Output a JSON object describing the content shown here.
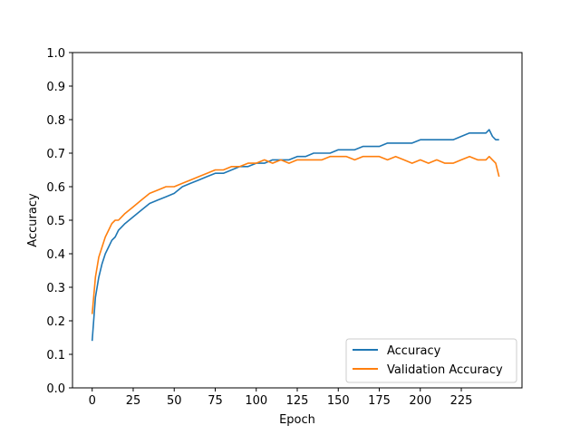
{
  "chart_data": {
    "type": "line",
    "title": "",
    "xlabel": "Epoch",
    "ylabel": "Accuracy",
    "xlim": [
      -12,
      262
    ],
    "ylim": [
      0.0,
      1.0
    ],
    "x_ticks": [
      0,
      25,
      50,
      75,
      100,
      125,
      150,
      175,
      200,
      225
    ],
    "y_ticks": [
      0.0,
      0.1,
      0.2,
      0.3,
      0.4,
      0.5,
      0.6,
      0.7,
      0.8,
      0.9,
      1.0
    ],
    "x_tick_labels": [
      "0",
      "25",
      "50",
      "75",
      "100",
      "125",
      "150",
      "175",
      "200",
      "225"
    ],
    "y_tick_labels": [
      "0.0",
      "0.1",
      "0.2",
      "0.3",
      "0.4",
      "0.5",
      "0.6",
      "0.7",
      "0.8",
      "0.9",
      "1.0"
    ],
    "grid": false,
    "legend_position": "lower-right",
    "series": [
      {
        "name": "Accuracy",
        "color": "#1f77b4",
        "x": [
          0,
          2,
          4,
          6,
          8,
          10,
          12,
          14,
          16,
          18,
          20,
          25,
          30,
          35,
          40,
          45,
          50,
          55,
          60,
          65,
          70,
          75,
          80,
          85,
          90,
          95,
          100,
          105,
          110,
          115,
          120,
          125,
          130,
          135,
          140,
          145,
          150,
          155,
          160,
          165,
          170,
          175,
          180,
          185,
          190,
          195,
          200,
          205,
          210,
          215,
          220,
          225,
          230,
          235,
          240,
          242,
          244,
          246,
          248
        ],
        "y": [
          0.14,
          0.27,
          0.33,
          0.37,
          0.4,
          0.42,
          0.44,
          0.45,
          0.47,
          0.48,
          0.49,
          0.51,
          0.53,
          0.55,
          0.56,
          0.57,
          0.58,
          0.6,
          0.61,
          0.62,
          0.63,
          0.64,
          0.64,
          0.65,
          0.66,
          0.66,
          0.67,
          0.67,
          0.68,
          0.68,
          0.68,
          0.69,
          0.69,
          0.7,
          0.7,
          0.7,
          0.71,
          0.71,
          0.71,
          0.72,
          0.72,
          0.72,
          0.73,
          0.73,
          0.73,
          0.73,
          0.74,
          0.74,
          0.74,
          0.74,
          0.74,
          0.75,
          0.76,
          0.76,
          0.76,
          0.77,
          0.75,
          0.74,
          0.74
        ]
      },
      {
        "name": "Validation Accuracy",
        "color": "#ff7f0e",
        "x": [
          0,
          2,
          4,
          6,
          8,
          10,
          12,
          14,
          16,
          18,
          20,
          25,
          30,
          35,
          40,
          45,
          50,
          55,
          60,
          65,
          70,
          75,
          80,
          85,
          90,
          95,
          100,
          105,
          110,
          115,
          120,
          125,
          130,
          135,
          140,
          145,
          150,
          155,
          160,
          165,
          170,
          175,
          180,
          185,
          190,
          195,
          200,
          205,
          210,
          215,
          220,
          225,
          230,
          235,
          240,
          242,
          244,
          246,
          248
        ],
        "y": [
          0.22,
          0.33,
          0.39,
          0.42,
          0.45,
          0.47,
          0.49,
          0.5,
          0.5,
          0.51,
          0.52,
          0.54,
          0.56,
          0.58,
          0.59,
          0.6,
          0.6,
          0.61,
          0.62,
          0.63,
          0.64,
          0.65,
          0.65,
          0.66,
          0.66,
          0.67,
          0.67,
          0.68,
          0.67,
          0.68,
          0.67,
          0.68,
          0.68,
          0.68,
          0.68,
          0.69,
          0.69,
          0.69,
          0.68,
          0.69,
          0.69,
          0.69,
          0.68,
          0.69,
          0.68,
          0.67,
          0.68,
          0.67,
          0.68,
          0.67,
          0.67,
          0.68,
          0.69,
          0.68,
          0.68,
          0.69,
          0.68,
          0.67,
          0.63
        ]
      }
    ]
  }
}
